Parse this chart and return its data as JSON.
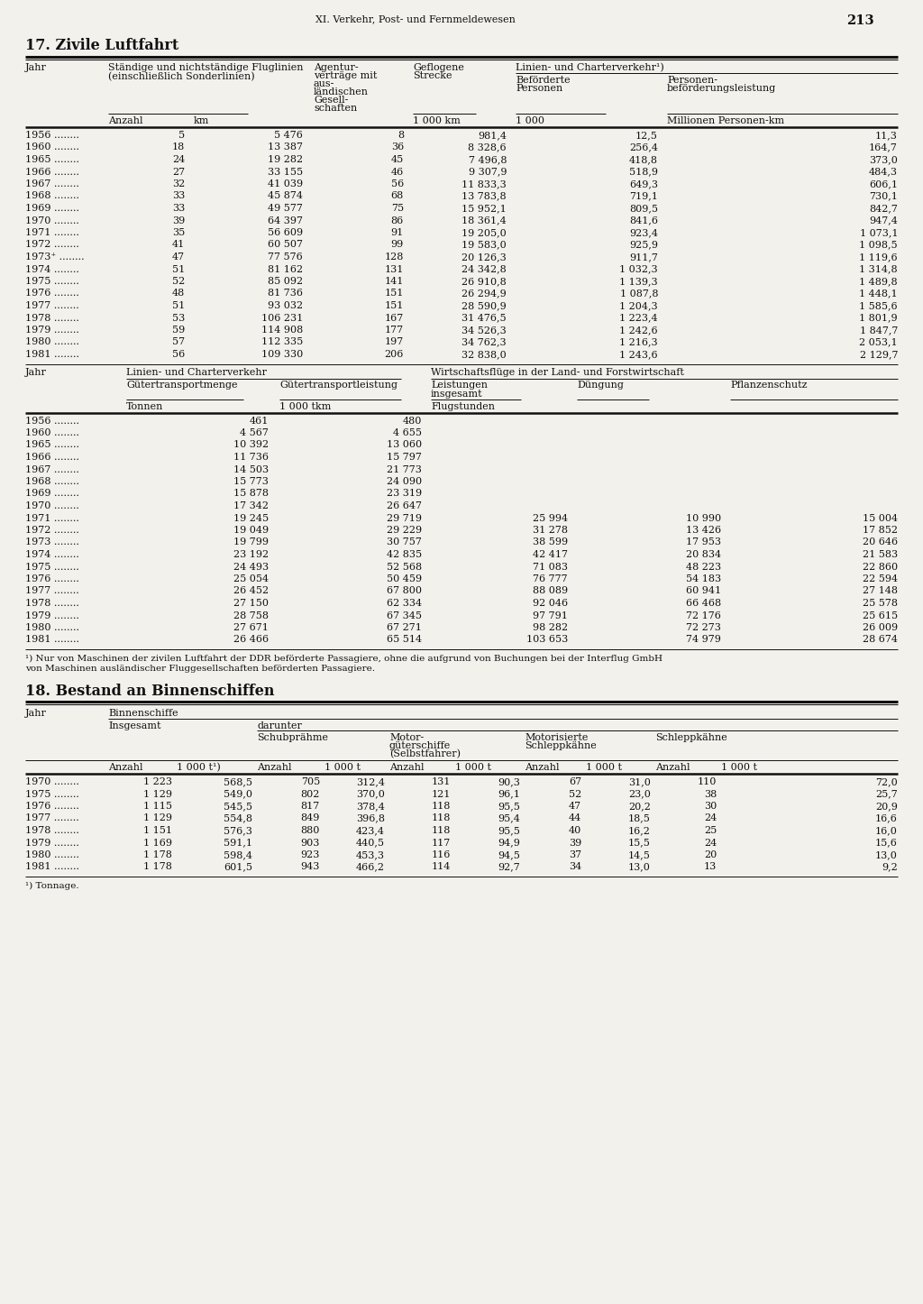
{
  "page_header": "XI. Verkehr, Post- und Fernmeldewesen",
  "page_number": "213",
  "section1_title": "17. Zivile Luftfahrt",
  "section2_title": "18. Bestand an Binnenschiffen",
  "bg_color": "#f2f1ec",
  "text_color": "#1a1a1a",
  "table1_data": [
    [
      "1956",
      "5",
      "5 476",
      "8",
      "981,4",
      "12,5",
      "11,3"
    ],
    [
      "1960",
      "18",
      "13 387",
      "36",
      "8 328,6",
      "256,4",
      "164,7"
    ],
    [
      "1965",
      "24",
      "19 282",
      "45",
      "7 496,8",
      "418,8",
      "373,0"
    ],
    [
      "1966",
      "27",
      "33 155",
      "46",
      "9 307,9",
      "518,9",
      "484,3"
    ],
    [
      "1967",
      "32",
      "41 039",
      "56",
      "11 833,3",
      "649,3",
      "606,1"
    ],
    [
      "1968",
      "33",
      "45 874",
      "68",
      "13 783,8",
      "719,1",
      "730,1"
    ],
    [
      "1969",
      "33",
      "49 577",
      "75",
      "15 952,1",
      "809,5",
      "842,7"
    ],
    [
      "1970",
      "39",
      "64 397",
      "86",
      "18 361,4",
      "841,6",
      "947,4"
    ],
    [
      "1971",
      "35",
      "56 609",
      "91",
      "19 205,0",
      "923,4",
      "1 073,1"
    ],
    [
      "1972",
      "41",
      "60 507",
      "99",
      "19 583,0",
      "925,9",
      "1 098,5"
    ],
    [
      "1973+",
      "47",
      "77 576",
      "128",
      "20 126,3",
      "911,7",
      "1 119,6"
    ],
    [
      "1974",
      "51",
      "81 162",
      "131",
      "24 342,8",
      "1 032,3",
      "1 314,8"
    ],
    [
      "1975",
      "52",
      "85 092",
      "141",
      "26 910,8",
      "1 139,3",
      "1 489,8"
    ],
    [
      "1976",
      "48",
      "81 736",
      "151",
      "26 294,9",
      "1 087,8",
      "1 448,1"
    ],
    [
      "1977",
      "51",
      "93 032",
      "151",
      "28 590,9",
      "1 204,3",
      "1 585,6"
    ],
    [
      "1978",
      "53",
      "106 231",
      "167",
      "31 476,5",
      "1 223,4",
      "1 801,9"
    ],
    [
      "1979",
      "59",
      "114 908",
      "177",
      "34 526,3",
      "1 242,6",
      "1 847,7"
    ],
    [
      "1980",
      "57",
      "112 335",
      "197",
      "34 762,3",
      "1 216,3",
      "2 053,1"
    ],
    [
      "1981",
      "56",
      "109 330",
      "206",
      "32 838,0",
      "1 243,6",
      "2 129,7"
    ]
  ],
  "table2_data": [
    [
      "1956",
      "461",
      "480",
      "",
      "",
      ""
    ],
    [
      "1960",
      "4 567",
      "4 655",
      "",
      "",
      ""
    ],
    [
      "1965",
      "10 392",
      "13 060",
      "",
      "",
      ""
    ],
    [
      "1966",
      "11 736",
      "15 797",
      "",
      "",
      ""
    ],
    [
      "1967",
      "14 503",
      "21 773",
      "",
      "",
      ""
    ],
    [
      "1968",
      "15 773",
      "24 090",
      "",
      "",
      ""
    ],
    [
      "1969",
      "15 878",
      "23 319",
      "",
      "",
      ""
    ],
    [
      "1970",
      "17 342",
      "26 647",
      "",
      "",
      ""
    ],
    [
      "1971",
      "19 245",
      "29 719",
      "25 994",
      "10 990",
      "15 004"
    ],
    [
      "1972",
      "19 049",
      "29 229",
      "31 278",
      "13 426",
      "17 852"
    ],
    [
      "1973",
      "19 799",
      "30 757",
      "38 599",
      "17 953",
      "20 646"
    ],
    [
      "1974",
      "23 192",
      "42 835",
      "42 417",
      "20 834",
      "21 583"
    ],
    [
      "1975",
      "24 493",
      "52 568",
      "71 083",
      "48 223",
      "22 860"
    ],
    [
      "1976",
      "25 054",
      "50 459",
      "76 777",
      "54 183",
      "22 594"
    ],
    [
      "1977",
      "26 452",
      "67 800",
      "88 089",
      "60 941",
      "27 148"
    ],
    [
      "1978",
      "27 150",
      "62 334",
      "92 046",
      "66 468",
      "25 578"
    ],
    [
      "1979",
      "28 758",
      "67 345",
      "97 791",
      "72 176",
      "25 615"
    ],
    [
      "1980",
      "27 671",
      "67 271",
      "98 282",
      "72 273",
      "26 009"
    ],
    [
      "1981",
      "26 466",
      "65 514",
      "103 653",
      "74 979",
      "28 674"
    ]
  ],
  "footnote1_line1": "¹) Nur von Maschinen der zivilen Luftfahrt der DDR beförderte Passagiere, ohne die aufgrund von Buchungen bei der Interflug GmbH",
  "footnote1_line2": "von Maschinen ausländischer Fluggesellschaften beförderten Passagiere.",
  "table3_data": [
    [
      "1970",
      "1 223",
      "568,5",
      "705",
      "312,4",
      "131",
      "90,3",
      "67",
      "31,0",
      "110",
      "72,0"
    ],
    [
      "1975",
      "1 129",
      "549,0",
      "802",
      "370,0",
      "121",
      "96,1",
      "52",
      "23,0",
      "38",
      "25,7"
    ],
    [
      "1976",
      "1 115",
      "545,5",
      "817",
      "378,4",
      "118",
      "95,5",
      "47",
      "20,2",
      "30",
      "20,9"
    ],
    [
      "1977",
      "1 129",
      "554,8",
      "849",
      "396,8",
      "118",
      "95,4",
      "44",
      "18,5",
      "24",
      "16,6"
    ],
    [
      "1978",
      "1 151",
      "576,3",
      "880",
      "423,4",
      "118",
      "95,5",
      "40",
      "16,2",
      "25",
      "16,0"
    ],
    [
      "1979",
      "1 169",
      "591,1",
      "903",
      "440,5",
      "117",
      "94,9",
      "39",
      "15,5",
      "24",
      "15,6"
    ],
    [
      "1980",
      "1 178",
      "598,4",
      "923",
      "453,3",
      "116",
      "94,5",
      "37",
      "14,5",
      "20",
      "13,0"
    ],
    [
      "1981",
      "1 178",
      "601,5",
      "943",
      "466,2",
      "114",
      "92,7",
      "34",
      "13,0",
      "13",
      "9,2"
    ]
  ],
  "footnote2": "¹) Tonnage."
}
